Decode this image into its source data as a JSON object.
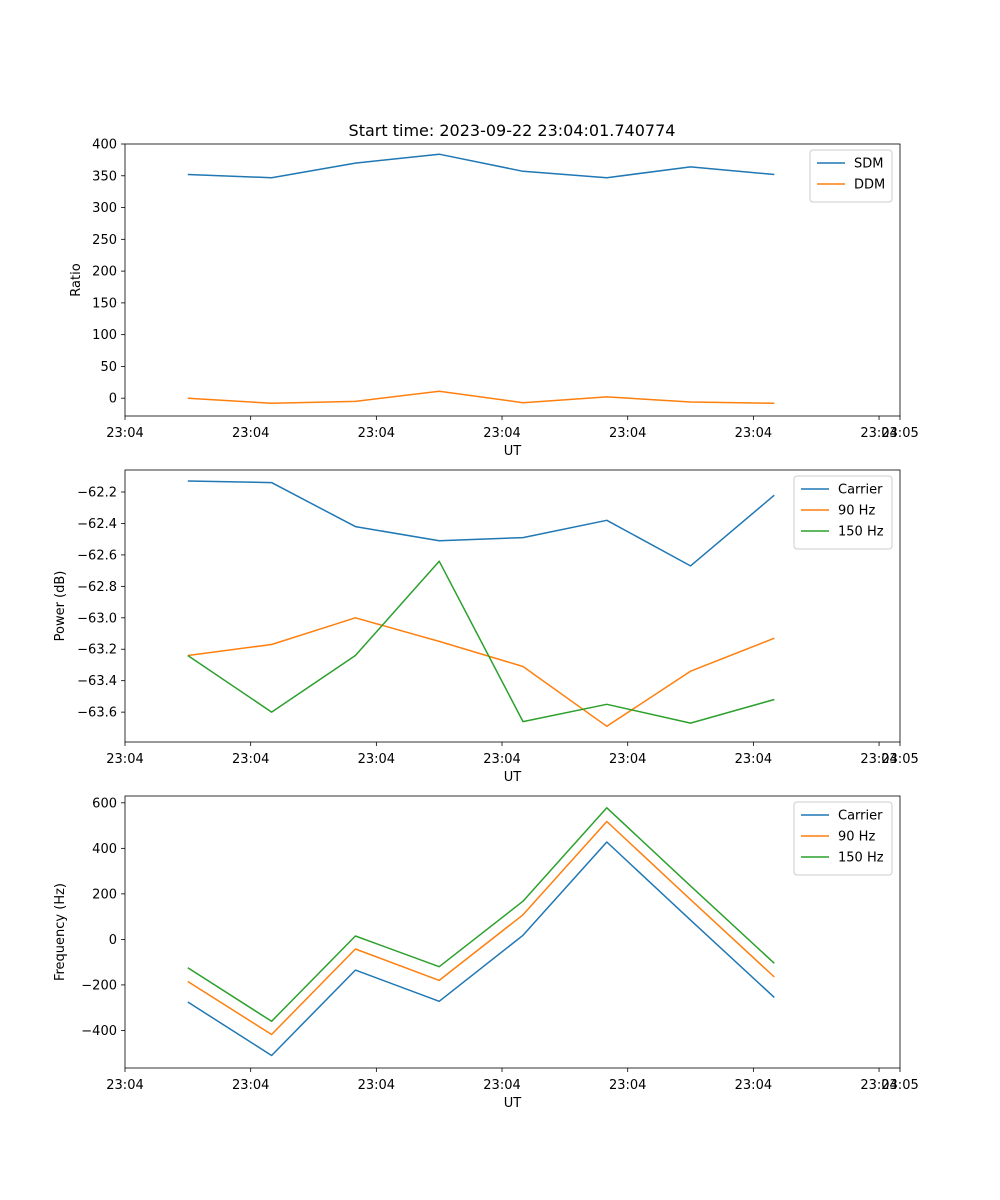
{
  "figure": {
    "title": "Start time: 2023-09-22 23:04:01.740774"
  },
  "chart_data": [
    {
      "type": "line",
      "title": "Start time: 2023-09-22 23:04:01.740774",
      "xlabel": "UT",
      "ylabel": "Ratio",
      "x_index": [
        0,
        1,
        2,
        3,
        4,
        5,
        6,
        7
      ],
      "xlim": [
        -0.75,
        8.5
      ],
      "x_ticks": [
        -0.75,
        0.75,
        2.25,
        3.75,
        5.25,
        6.75,
        8.25
      ],
      "x_tick_labels": [
        "23:04",
        "23:04",
        "23:04",
        "23:04",
        "23:04",
        "23:04",
        "23:04"
      ],
      "x_extra_tick": {
        "at": 8.5,
        "label": "23:05"
      },
      "ylim": [
        -28,
        400
      ],
      "y_ticks": [
        0,
        50,
        100,
        150,
        200,
        250,
        300,
        350,
        400
      ],
      "y_tick_labels": [
        "0",
        "50",
        "100",
        "150",
        "200",
        "250",
        "300",
        "350",
        "400"
      ],
      "legend": "top-right",
      "series": [
        {
          "name": "SDM",
          "color": "#1f77b4",
          "values": [
            352,
            347,
            370,
            384,
            357,
            347,
            364,
            352
          ]
        },
        {
          "name": "DDM",
          "color": "#ff7f0e",
          "values": [
            0,
            -8,
            -5,
            11,
            -7,
            2,
            -6,
            -8
          ]
        }
      ]
    },
    {
      "type": "line",
      "title": "",
      "xlabel": "UT",
      "ylabel": "Power (dB)",
      "x_index": [
        0,
        1,
        2,
        3,
        4,
        5,
        6,
        7
      ],
      "xlim": [
        -0.75,
        8.5
      ],
      "x_ticks": [
        -0.75,
        0.75,
        2.25,
        3.75,
        5.25,
        6.75,
        8.25
      ],
      "x_tick_labels": [
        "23:04",
        "23:04",
        "23:04",
        "23:04",
        "23:04",
        "23:04",
        "23:04"
      ],
      "x_extra_tick": {
        "at": 8.5,
        "label": "23:05"
      },
      "ylim": [
        -63.79,
        -62.06
      ],
      "y_ticks": [
        -62.2,
        -62.4,
        -62.6,
        -62.8,
        -63.0,
        -63.2,
        -63.4,
        -63.6
      ],
      "y_tick_labels": [
        "−62.2",
        "−62.4",
        "−62.6",
        "−62.8",
        "−63.0",
        "−63.2",
        "−63.4",
        "−63.6"
      ],
      "legend": "top-right",
      "series": [
        {
          "name": "Carrier",
          "color": "#1f77b4",
          "values": [
            -62.13,
            -62.14,
            -62.42,
            -62.51,
            -62.49,
            -62.38,
            -62.67,
            -62.22
          ]
        },
        {
          "name": "90 Hz",
          "color": "#ff7f0e",
          "values": [
            -63.24,
            -63.17,
            -63.0,
            -63.15,
            -63.31,
            -63.69,
            -63.34,
            -63.13
          ]
        },
        {
          "name": "150 Hz",
          "color": "#2ca02c",
          "values": [
            -63.24,
            -63.6,
            -63.24,
            -62.64,
            -63.66,
            -63.55,
            -63.67,
            -63.52
          ]
        }
      ]
    },
    {
      "type": "line",
      "title": "",
      "xlabel": "UT",
      "ylabel": "Frequency (Hz)",
      "x_index": [
        0,
        1,
        2,
        3,
        4,
        5,
        6,
        7
      ],
      "xlim": [
        -0.75,
        8.5
      ],
      "x_ticks": [
        -0.75,
        0.75,
        2.25,
        3.75,
        5.25,
        6.75,
        8.25
      ],
      "x_tick_labels": [
        "23:04",
        "23:04",
        "23:04",
        "23:04",
        "23:04",
        "23:04",
        "23:04"
      ],
      "x_extra_tick": {
        "at": 8.5,
        "label": "23:05"
      },
      "ylim": [
        -565,
        630
      ],
      "y_ticks": [
        -400,
        -200,
        0,
        200,
        400,
        600
      ],
      "y_tick_labels": [
        "−400",
        "−200",
        "0",
        "200",
        "400",
        "600"
      ],
      "legend": "top-right",
      "series": [
        {
          "name": "Carrier",
          "color": "#1f77b4",
          "values": [
            -275,
            -510,
            -135,
            -272,
            18,
            428,
            85,
            -255
          ]
        },
        {
          "name": "90 Hz",
          "color": "#ff7f0e",
          "values": [
            -185,
            -418,
            -42,
            -180,
            108,
            518,
            175,
            -165
          ]
        },
        {
          "name": "150 Hz",
          "color": "#2ca02c",
          "values": [
            -125,
            -360,
            15,
            -120,
            168,
            578,
            235,
            -105
          ]
        }
      ]
    }
  ]
}
